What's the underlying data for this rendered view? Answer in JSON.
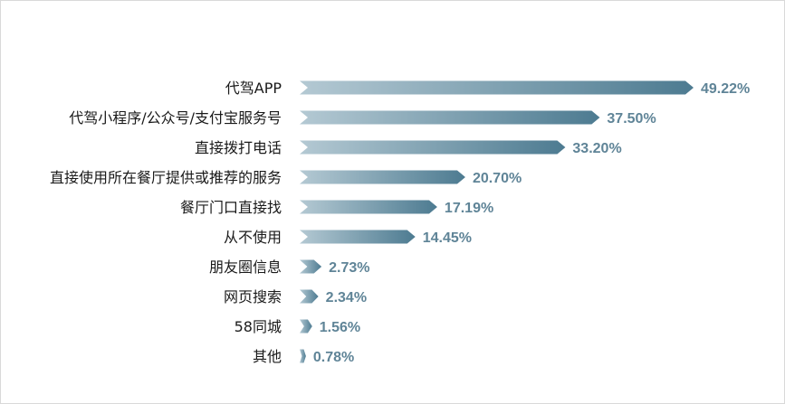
{
  "chart_data": {
    "type": "bar",
    "orientation": "horizontal",
    "categories": [
      "代驾APP",
      "代驾小程序/公众号/支付宝服务号",
      "直接拨打电话",
      "直接使用所在餐厅提供或推荐的服务",
      "餐厅门口直接找",
      "从不使用",
      "朋友圈信息",
      "网页搜索",
      "58同城",
      "其他"
    ],
    "values": [
      49.22,
      37.5,
      33.2,
      20.7,
      17.19,
      14.45,
      2.73,
      2.34,
      1.56,
      0.78
    ],
    "value_labels": [
      "49.22%",
      "37.50%",
      "33.20%",
      "20.70%",
      "17.19%",
      "14.45%",
      "2.73%",
      "2.34%",
      "1.56%",
      "0.78%"
    ],
    "xlim": [
      0,
      50
    ],
    "grid": false,
    "legend": "none",
    "colors": {
      "bar_light": "#b4c9d3",
      "bar_dark": "#4d7b91",
      "label": "#5f8497",
      "text": "#1a1a1a"
    }
  }
}
